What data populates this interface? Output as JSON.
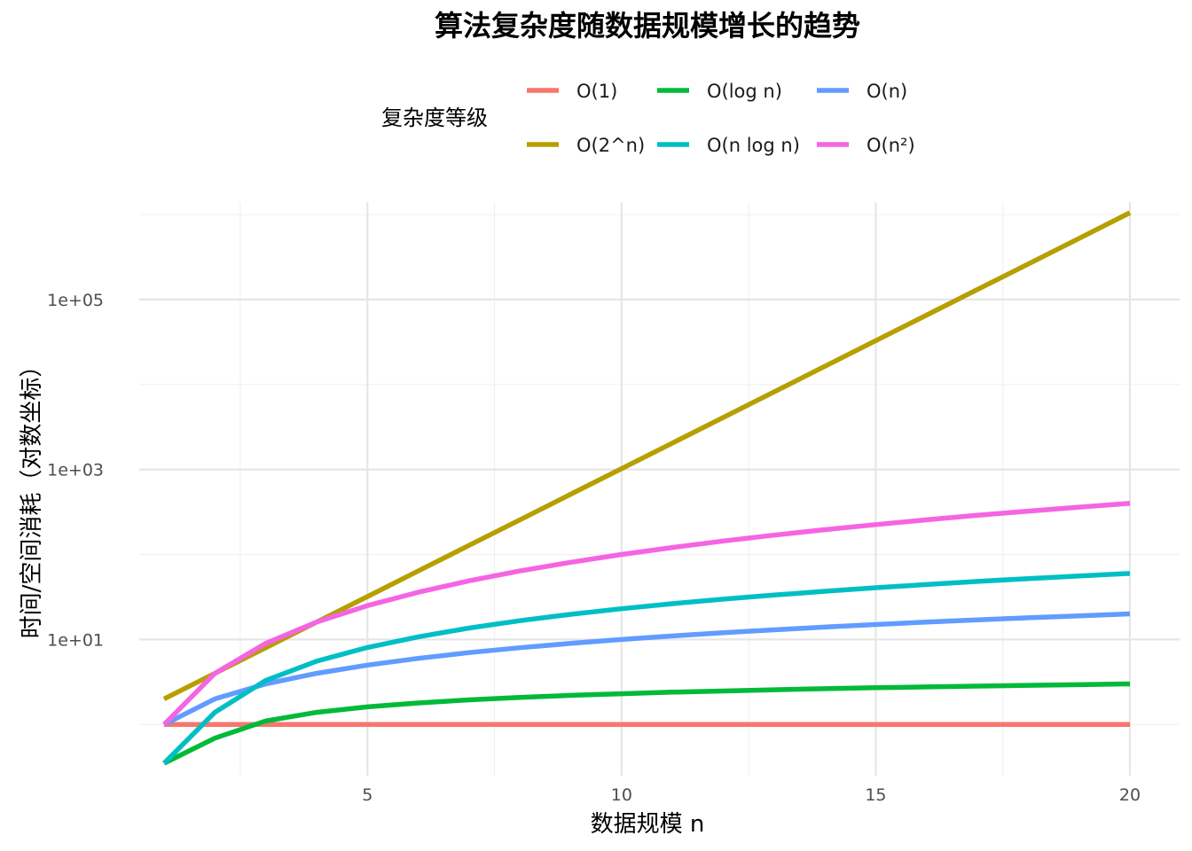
{
  "chart_data": {
    "type": "line",
    "title": "算法复杂度随数据规模增长的趋势",
    "xlabel": "数据规模 n",
    "ylabel": "时间/空间消耗（对数坐标）",
    "x_scale": "linear",
    "y_scale": "log10",
    "xlim": [
      1,
      20
    ],
    "ylim": [
      0.25,
      1400000
    ],
    "x_ticks": [
      5,
      10,
      15,
      20
    ],
    "x_tick_labels": [
      "5",
      "10",
      "15",
      "20"
    ],
    "y_ticks": [
      10,
      1000,
      100000
    ],
    "y_tick_labels": [
      "1e+01",
      "1e+03",
      "1e+05"
    ],
    "grid": true,
    "legend": {
      "title": "复杂度等级",
      "position": "top"
    },
    "x": [
      1,
      2,
      3,
      4,
      5,
      6,
      7,
      8,
      9,
      10,
      11,
      12,
      13,
      14,
      15,
      16,
      17,
      18,
      19,
      20
    ],
    "series": [
      {
        "name": "O(1)",
        "color": "#F8766D",
        "values": [
          1,
          1,
          1,
          1,
          1,
          1,
          1,
          1,
          1,
          1,
          1,
          1,
          1,
          1,
          1,
          1,
          1,
          1,
          1,
          1
        ]
      },
      {
        "name": "O(log n)",
        "color": "#00BA38",
        "values": [
          0.35,
          0.69,
          1.1,
          1.39,
          1.61,
          1.79,
          1.95,
          2.08,
          2.2,
          2.3,
          2.4,
          2.48,
          2.56,
          2.64,
          2.71,
          2.77,
          2.83,
          2.89,
          2.94,
          3.0
        ]
      },
      {
        "name": "O(n)",
        "color": "#619CFF",
        "values": [
          1,
          2,
          3,
          4,
          5,
          6,
          7,
          8,
          9,
          10,
          11,
          12,
          13,
          14,
          15,
          16,
          17,
          18,
          19,
          20
        ]
      },
      {
        "name": "O(2^n)",
        "color": "#B79F00",
        "values": [
          2,
          4,
          8,
          16,
          32,
          64,
          128,
          256,
          512,
          1024,
          2048,
          4096,
          8192,
          16384,
          32768,
          65536,
          131072,
          262144,
          524288,
          1048576
        ]
      },
      {
        "name": "O(n log n)",
        "color": "#00BFC4",
        "values": [
          0.35,
          1.39,
          3.3,
          5.55,
          8.05,
          10.75,
          13.62,
          16.64,
          19.78,
          23.03,
          26.38,
          29.82,
          33.34,
          36.95,
          40.62,
          44.36,
          48.16,
          52.03,
          55.94,
          59.91
        ]
      },
      {
        "name": "O(n²)",
        "color": "#F564E3",
        "values": [
          1,
          4,
          9,
          16,
          25,
          36,
          49,
          64,
          81,
          100,
          121,
          144,
          169,
          196,
          225,
          256,
          289,
          324,
          361,
          400
        ]
      }
    ]
  }
}
